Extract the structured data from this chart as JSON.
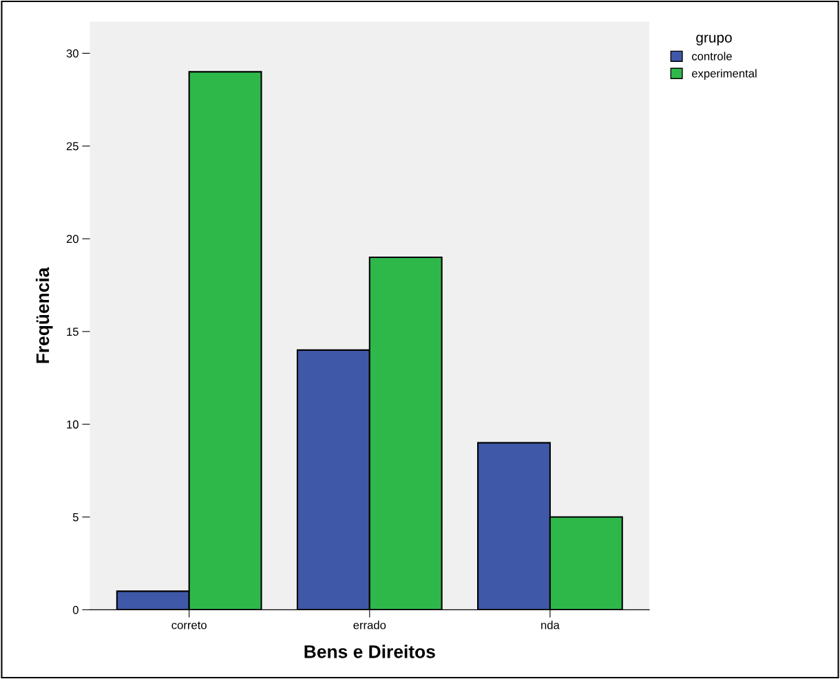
{
  "chart_data": {
    "type": "bar",
    "xlabel": "Bens e Direitos",
    "ylabel": "Freqüencia",
    "legend_title": "grupo",
    "categories": [
      "correto",
      "errado",
      "nda"
    ],
    "series": [
      {
        "name": "controle",
        "color": "#3f58a8",
        "values": [
          1,
          14,
          9
        ]
      },
      {
        "name": "experimental",
        "color": "#2fb84a",
        "values": [
          29,
          19,
          5
        ]
      }
    ],
    "ylim": [
      0,
      31.7
    ],
    "yticks": [
      0,
      5,
      10,
      15,
      20,
      25,
      30
    ],
    "grid": false,
    "legend": "top right"
  }
}
